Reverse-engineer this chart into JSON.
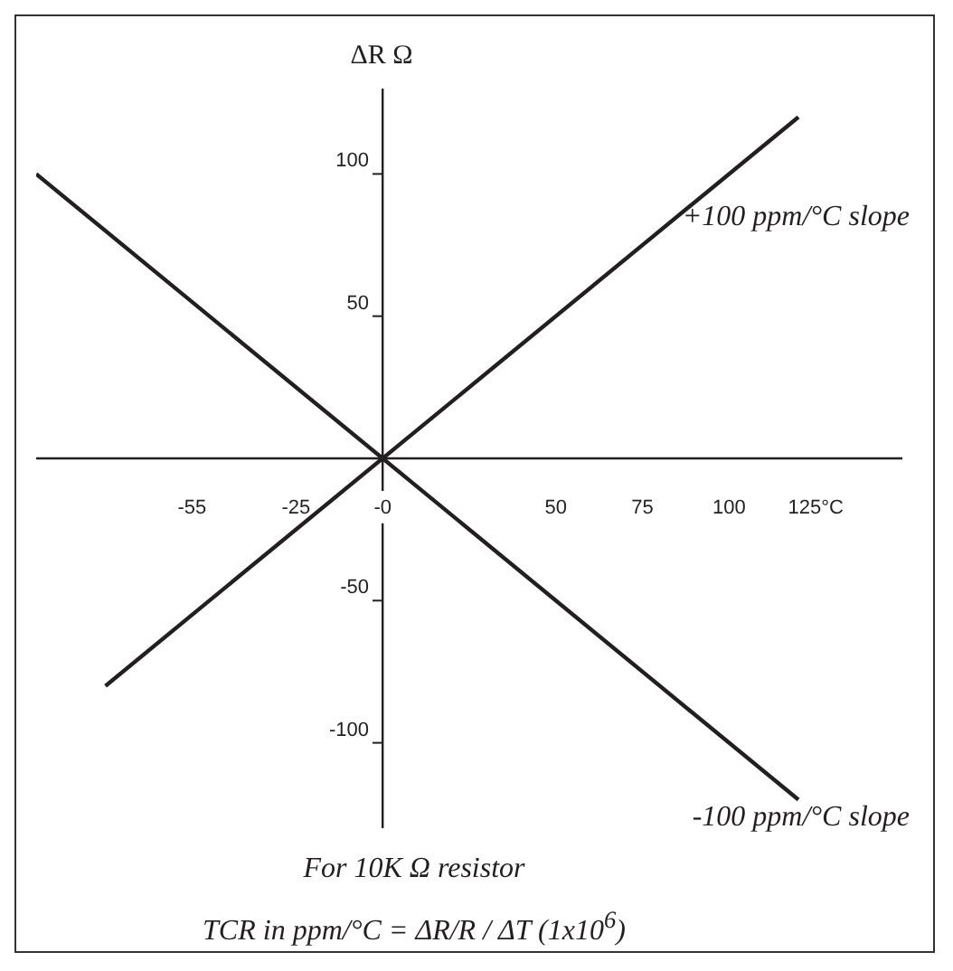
{
  "chart_data": {
    "type": "line",
    "ylabel": "ΔR Ω",
    "xlim": [
      -100,
      150
    ],
    "ylim": [
      -130,
      130
    ],
    "xticks": [
      -55,
      -25,
      {
        "value": 0,
        "label": "-0"
      },
      50,
      75,
      100,
      {
        "value": 125,
        "label": "125°C"
      }
    ],
    "yticks": [
      -100,
      -50,
      50,
      100
    ],
    "series": [
      {
        "name": "+100 ppm/°C slope",
        "color": "#231f20",
        "x": [
          -80,
          120
        ],
        "values": [
          -80,
          120
        ]
      },
      {
        "name": "-100 ppm/°C slope",
        "color": "#231f20",
        "x": [
          -100,
          120
        ],
        "values": [
          100,
          -120
        ]
      }
    ],
    "annotations": [
      "For 10K Ω resistor",
      "TCR in ppm/°C = ΔR/R / ΔT (1x10$^{6}$)"
    ],
    "marker": "none",
    "line_style": "solid",
    "grid": false,
    "legend": false
  }
}
